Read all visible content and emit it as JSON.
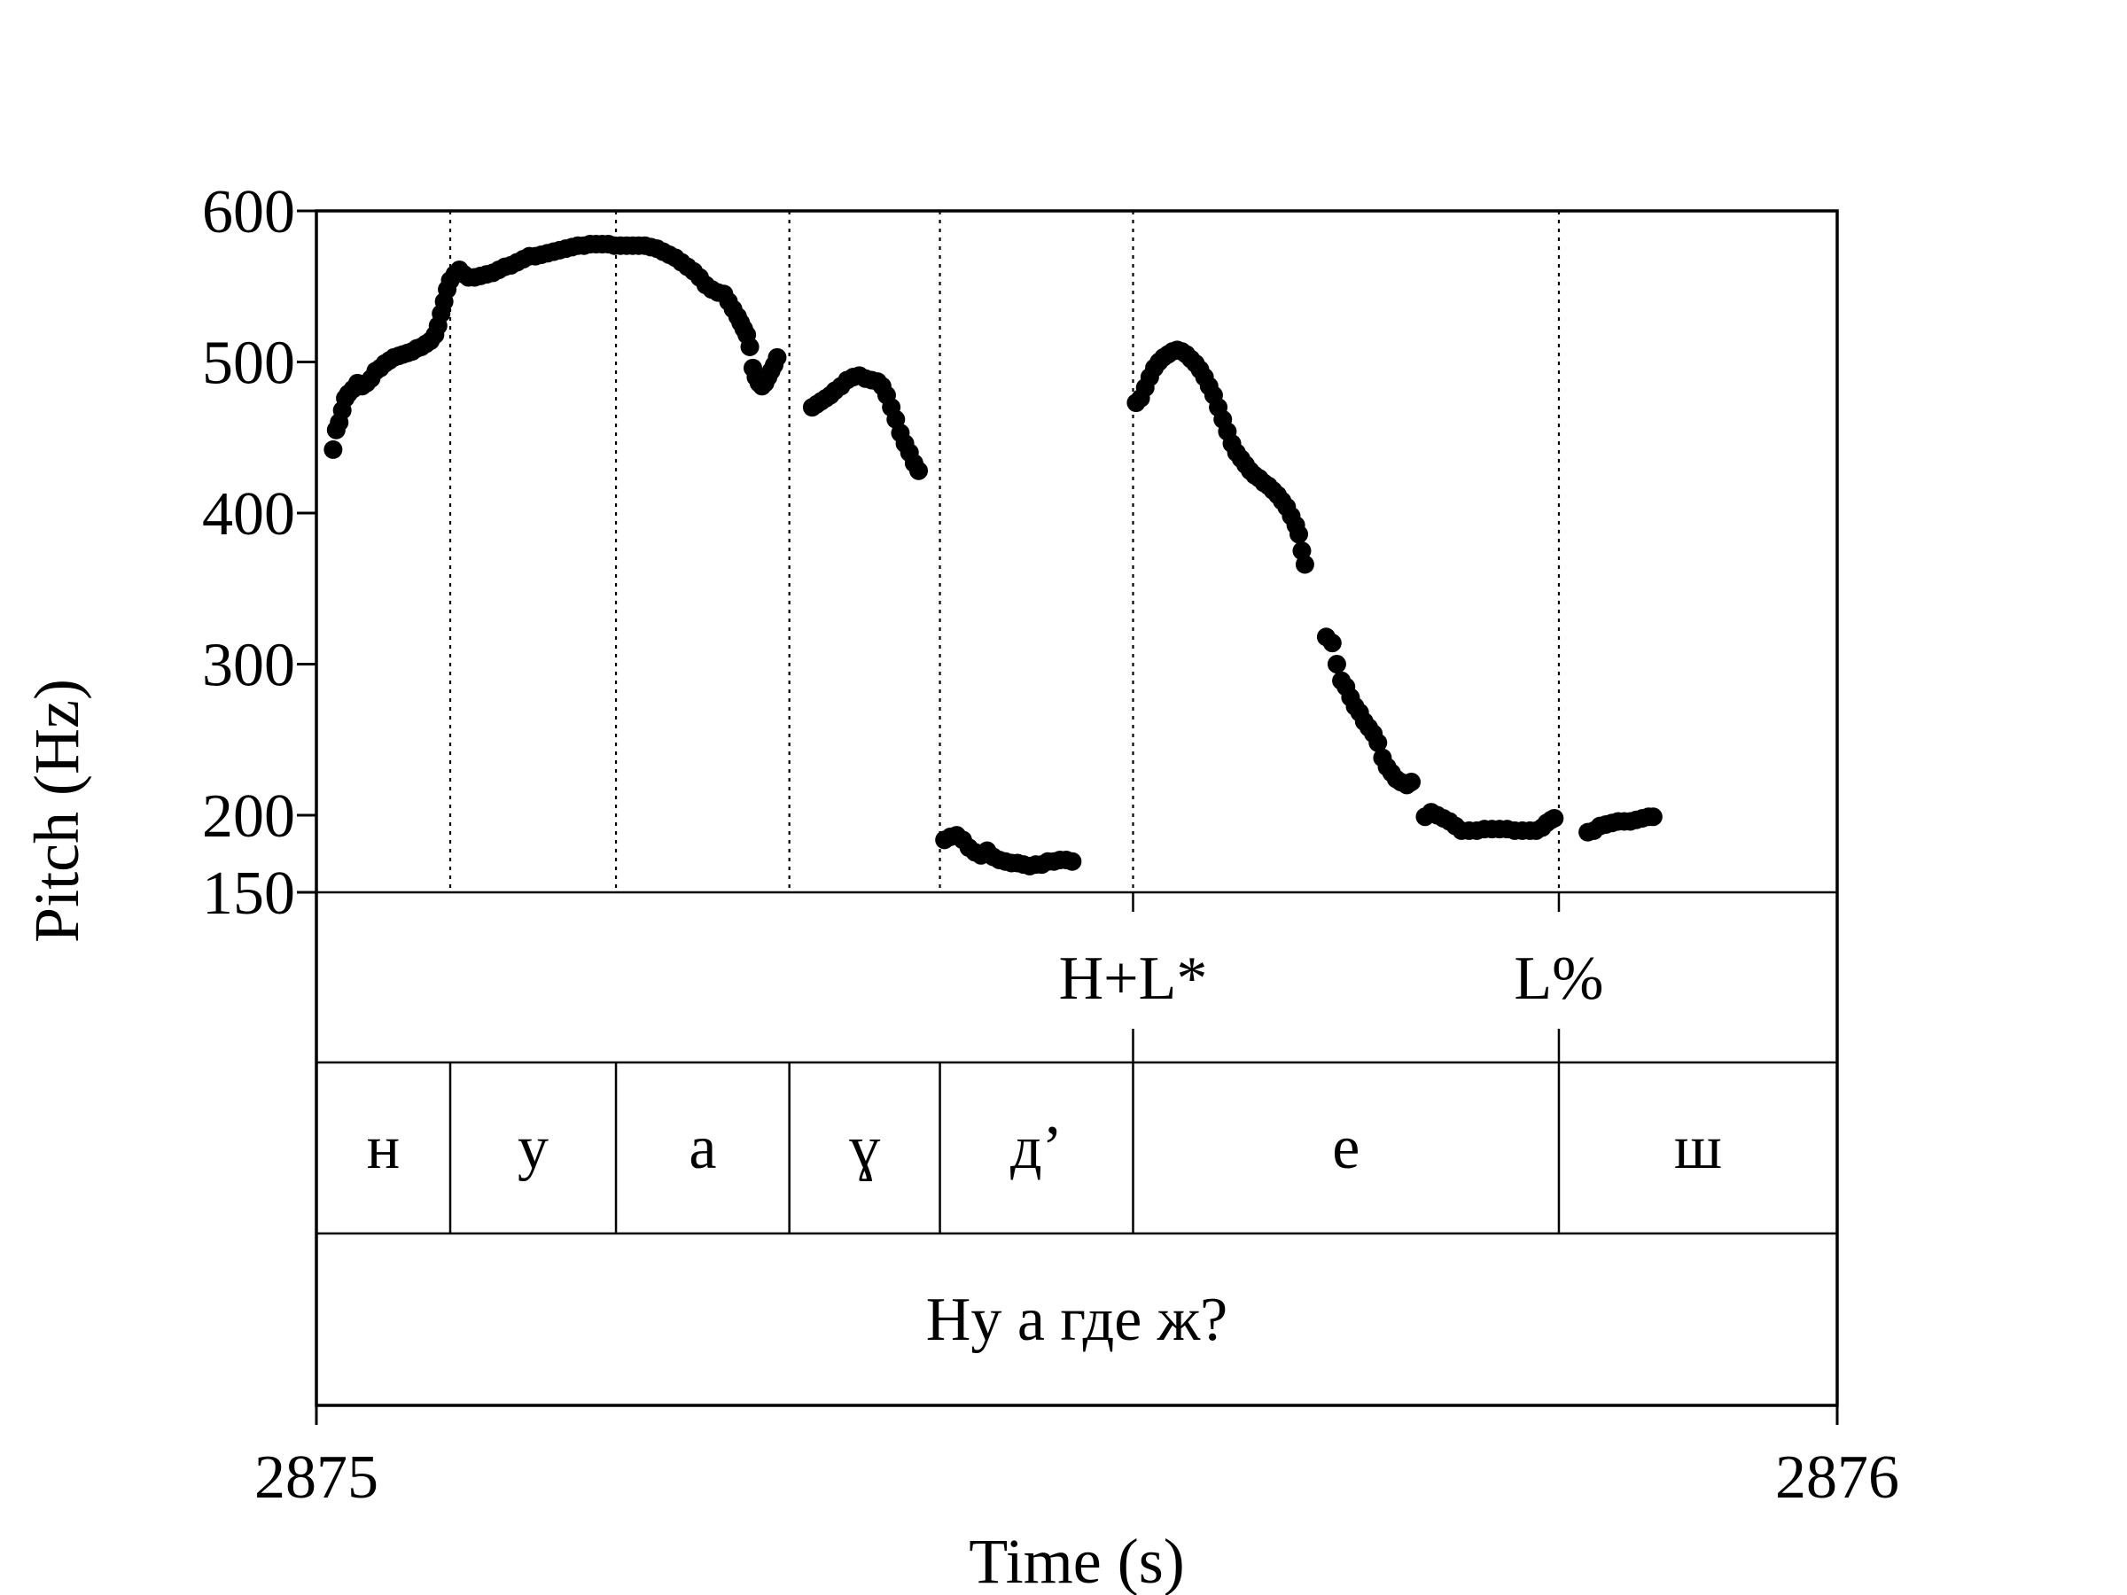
{
  "chart_data": {
    "type": "scatter",
    "xlabel": "Time (s)",
    "ylabel": "Pitch (Hz)",
    "x_tick_labels": [
      "2875",
      "2876"
    ],
    "y_tick_labels": [
      "150",
      "200",
      "300",
      "400",
      "500",
      "600"
    ],
    "x_range": [
      0,
      1
    ],
    "ylim": [
      150,
      600
    ],
    "y_ticks": [
      150,
      200,
      300,
      400,
      500,
      600
    ],
    "boundaries": [
      0.088,
      0.197,
      0.311,
      0.41,
      0.537,
      0.817
    ],
    "tones": [
      {
        "label": "H+L*",
        "t": 0.537
      },
      {
        "label": "L%",
        "t": 0.817
      }
    ],
    "segments": [
      {
        "label": "н",
        "start": 0.0,
        "end": 0.088
      },
      {
        "label": "у",
        "start": 0.088,
        "end": 0.197
      },
      {
        "label": "а",
        "start": 0.197,
        "end": 0.311
      },
      {
        "label": "ɣ",
        "start": 0.311,
        "end": 0.41
      },
      {
        "label": "д’",
        "start": 0.41,
        "end": 0.537
      },
      {
        "label": "е",
        "start": 0.537,
        "end": 0.817
      },
      {
        "label": "ш",
        "start": 0.817,
        "end": 1.0
      }
    ],
    "utterance": "Ну а где ж?",
    "series": [
      {
        "points": [
          [
            0.011,
            442
          ],
          [
            0.013,
            455
          ],
          [
            0.015,
            460
          ],
          [
            0.017,
            468
          ],
          [
            0.019,
            476
          ],
          [
            0.021,
            479
          ],
          [
            0.024,
            482
          ],
          [
            0.027,
            486
          ],
          [
            0.03,
            484
          ],
          [
            0.033,
            486
          ],
          [
            0.036,
            489
          ],
          [
            0.039,
            494
          ],
          [
            0.042,
            496
          ],
          [
            0.045,
            499
          ],
          [
            0.048,
            501
          ],
          [
            0.051,
            503
          ],
          [
            0.054,
            504
          ],
          [
            0.057,
            505
          ],
          [
            0.06,
            506
          ],
          [
            0.063,
            507
          ],
          [
            0.066,
            509
          ],
          [
            0.069,
            510
          ],
          [
            0.072,
            512
          ],
          [
            0.075,
            514
          ],
          [
            0.078,
            518
          ],
          [
            0.08,
            524
          ],
          [
            0.082,
            532
          ],
          [
            0.084,
            540
          ],
          [
            0.086,
            548
          ],
          [
            0.088,
            554
          ],
          [
            0.091,
            558
          ],
          [
            0.094,
            561
          ],
          [
            0.097,
            558
          ],
          [
            0.1,
            556
          ],
          [
            0.104,
            556
          ],
          [
            0.108,
            557
          ],
          [
            0.112,
            558
          ],
          [
            0.116,
            559
          ],
          [
            0.12,
            561
          ],
          [
            0.124,
            563
          ],
          [
            0.128,
            564
          ],
          [
            0.132,
            566
          ],
          [
            0.136,
            568
          ],
          [
            0.14,
            570
          ],
          [
            0.144,
            570
          ],
          [
            0.148,
            571
          ],
          [
            0.152,
            572
          ],
          [
            0.156,
            573
          ],
          [
            0.16,
            574
          ],
          [
            0.164,
            575
          ],
          [
            0.168,
            576
          ],
          [
            0.172,
            577
          ],
          [
            0.176,
            577
          ],
          [
            0.18,
            578
          ],
          [
            0.184,
            578
          ],
          [
            0.188,
            578
          ],
          [
            0.192,
            578
          ],
          [
            0.196,
            577
          ],
          [
            0.2,
            577
          ],
          [
            0.204,
            577
          ],
          [
            0.208,
            577
          ],
          [
            0.212,
            577
          ],
          [
            0.216,
            577
          ],
          [
            0.22,
            576
          ],
          [
            0.224,
            575
          ],
          [
            0.228,
            573
          ],
          [
            0.232,
            571
          ],
          [
            0.236,
            569
          ],
          [
            0.24,
            566
          ],
          [
            0.244,
            563
          ],
          [
            0.248,
            560
          ],
          [
            0.252,
            556
          ],
          [
            0.256,
            551
          ],
          [
            0.26,
            548
          ],
          [
            0.264,
            546
          ],
          [
            0.268,
            545
          ],
          [
            0.271,
            540
          ],
          [
            0.274,
            535
          ],
          [
            0.277,
            530
          ],
          [
            0.279,
            526
          ],
          [
            0.281,
            522
          ],
          [
            0.283,
            518
          ],
          [
            0.285,
            510
          ],
          [
            0.287,
            496
          ],
          [
            0.289,
            490
          ],
          [
            0.291,
            486
          ],
          [
            0.293,
            484
          ],
          [
            0.295,
            486
          ],
          [
            0.297,
            490
          ],
          [
            0.299,
            494
          ],
          [
            0.301,
            498
          ],
          [
            0.303,
            503
          ],
          [
            0.326,
            470
          ],
          [
            0.329,
            472
          ],
          [
            0.332,
            474
          ],
          [
            0.335,
            476
          ],
          [
            0.338,
            478
          ],
          [
            0.341,
            481
          ],
          [
            0.345,
            484
          ],
          [
            0.349,
            488
          ],
          [
            0.353,
            490
          ],
          [
            0.357,
            491
          ],
          [
            0.361,
            489
          ],
          [
            0.365,
            488
          ],
          [
            0.369,
            487
          ],
          [
            0.372,
            484
          ],
          [
            0.375,
            478
          ],
          [
            0.378,
            470
          ],
          [
            0.381,
            462
          ],
          [
            0.384,
            453
          ],
          [
            0.387,
            446
          ],
          [
            0.39,
            440
          ],
          [
            0.393,
            433
          ],
          [
            0.396,
            428
          ],
          [
            0.413,
            184
          ],
          [
            0.417,
            186
          ],
          [
            0.421,
            187
          ],
          [
            0.425,
            184
          ],
          [
            0.429,
            179
          ],
          [
            0.433,
            176
          ],
          [
            0.437,
            174
          ],
          [
            0.441,
            177
          ],
          [
            0.445,
            173
          ],
          [
            0.449,
            171
          ],
          [
            0.453,
            170
          ],
          [
            0.457,
            169
          ],
          [
            0.461,
            169
          ],
          [
            0.465,
            168
          ],
          [
            0.469,
            167
          ],
          [
            0.473,
            168
          ],
          [
            0.477,
            168
          ],
          [
            0.481,
            170
          ],
          [
            0.485,
            170
          ],
          [
            0.489,
            171
          ],
          [
            0.493,
            171
          ],
          [
            0.497,
            170
          ],
          [
            0.539,
            473
          ],
          [
            0.542,
            476
          ],
          [
            0.545,
            483
          ],
          [
            0.548,
            490
          ],
          [
            0.551,
            496
          ],
          [
            0.554,
            500
          ],
          [
            0.557,
            503
          ],
          [
            0.56,
            505
          ],
          [
            0.563,
            507
          ],
          [
            0.566,
            508
          ],
          [
            0.569,
            507
          ],
          [
            0.572,
            505
          ],
          [
            0.575,
            502
          ],
          [
            0.578,
            499
          ],
          [
            0.581,
            495
          ],
          [
            0.584,
            490
          ],
          [
            0.587,
            484
          ],
          [
            0.59,
            478
          ],
          [
            0.593,
            470
          ],
          [
            0.596,
            462
          ],
          [
            0.599,
            454
          ],
          [
            0.602,
            446
          ],
          [
            0.605,
            440
          ],
          [
            0.608,
            436
          ],
          [
            0.611,
            432
          ],
          [
            0.614,
            428
          ],
          [
            0.617,
            425
          ],
          [
            0.62,
            423
          ],
          [
            0.623,
            420
          ],
          [
            0.626,
            418
          ],
          [
            0.629,
            415
          ],
          [
            0.632,
            412
          ],
          [
            0.635,
            408
          ],
          [
            0.638,
            404
          ],
          [
            0.641,
            398
          ],
          [
            0.644,
            392
          ],
          [
            0.646,
            386
          ],
          [
            0.648,
            375
          ],
          [
            0.65,
            366
          ],
          [
            0.664,
            318
          ],
          [
            0.668,
            314
          ],
          [
            0.671,
            300
          ],
          [
            0.674,
            289
          ],
          [
            0.677,
            285
          ],
          [
            0.68,
            278
          ],
          [
            0.683,
            272
          ],
          [
            0.686,
            268
          ],
          [
            0.689,
            262
          ],
          [
            0.692,
            258
          ],
          [
            0.695,
            254
          ],
          [
            0.698,
            248
          ],
          [
            0.701,
            238
          ],
          [
            0.704,
            232
          ],
          [
            0.707,
            228
          ],
          [
            0.71,
            224
          ],
          [
            0.713,
            222
          ],
          [
            0.717,
            220
          ],
          [
            0.72,
            222
          ],
          [
            0.729,
            199
          ],
          [
            0.733,
            202
          ],
          [
            0.737,
            200
          ],
          [
            0.741,
            198
          ],
          [
            0.745,
            196
          ],
          [
            0.749,
            193
          ],
          [
            0.753,
            190
          ],
          [
            0.758,
            190
          ],
          [
            0.763,
            190
          ],
          [
            0.768,
            191
          ],
          [
            0.773,
            191
          ],
          [
            0.778,
            191
          ],
          [
            0.783,
            191
          ],
          [
            0.788,
            190
          ],
          [
            0.793,
            190
          ],
          [
            0.798,
            190
          ],
          [
            0.802,
            190
          ],
          [
            0.806,
            192
          ],
          [
            0.809,
            195
          ],
          [
            0.812,
            197
          ],
          [
            0.814,
            198
          ],
          [
            0.836,
            189
          ],
          [
            0.84,
            190
          ],
          [
            0.844,
            193
          ],
          [
            0.848,
            194
          ],
          [
            0.852,
            195
          ],
          [
            0.856,
            196
          ],
          [
            0.86,
            196
          ],
          [
            0.864,
            196
          ],
          [
            0.868,
            197
          ],
          [
            0.872,
            198
          ],
          [
            0.876,
            199
          ],
          [
            0.879,
            199
          ]
        ]
      }
    ]
  }
}
